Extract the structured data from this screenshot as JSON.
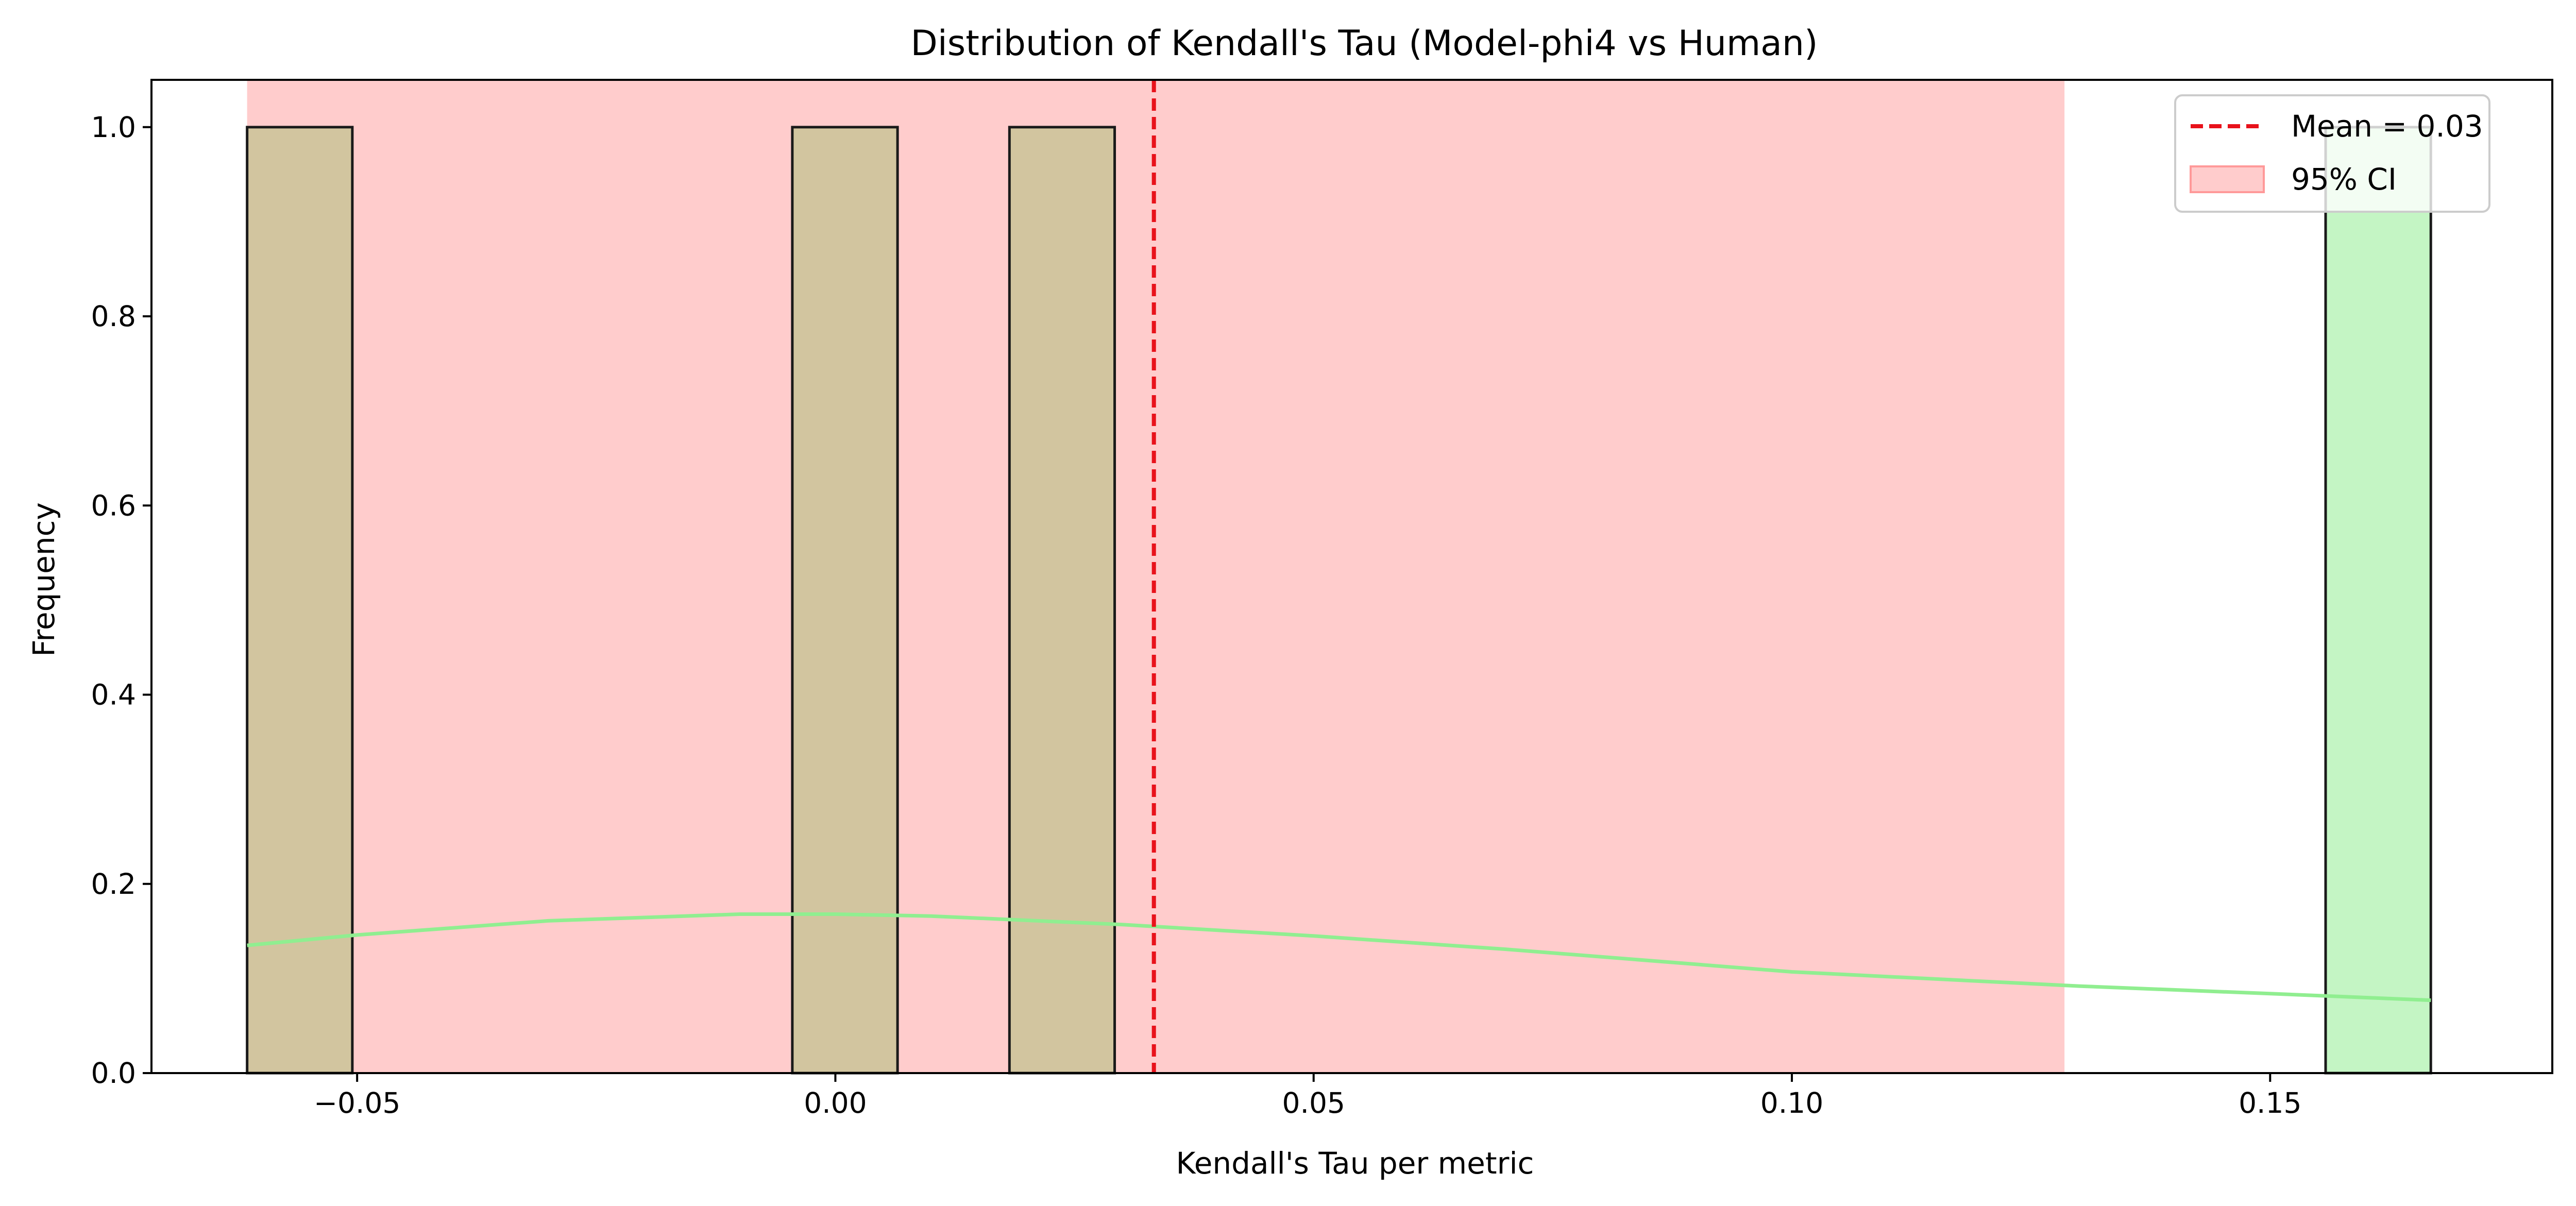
{
  "chart_data": {
    "type": "histogram",
    "title": "Distribution of Kendall's Tau (Model-phi4 vs Human)",
    "xlabel": "Kendall's Tau per metric",
    "ylabel": "Frequency",
    "xlim": [
      -0.0715,
      0.1795
    ],
    "ylim": [
      0,
      1.05
    ],
    "xticks": [
      -0.05,
      0.0,
      0.05,
      0.1,
      0.15
    ],
    "xtick_labels": [
      "−0.05",
      "0.00",
      "0.05",
      "0.10",
      "0.15"
    ],
    "yticks": [
      0.0,
      0.2,
      0.4,
      0.6,
      0.8,
      1.0
    ],
    "ytick_labels": [
      "0.0",
      "0.2",
      "0.4",
      "0.6",
      "0.8",
      "1.0"
    ],
    "grid": false,
    "legend_position": "top-right",
    "bins": [
      {
        "x0": -0.0615,
        "x1": -0.0505,
        "count": 1,
        "in_ci": true
      },
      {
        "x0": -0.0045,
        "x1": 0.0065,
        "count": 1,
        "in_ci": true
      },
      {
        "x0": 0.0182,
        "x1": 0.0292,
        "count": 1,
        "in_ci": true
      },
      {
        "x0": 0.1558,
        "x1": 0.1668,
        "count": 1,
        "in_ci": false
      }
    ],
    "mean": {
      "value": 0.0333,
      "label": "Mean = 0.03",
      "color": "#e8121b"
    },
    "ci": {
      "low": -0.0615,
      "high": 0.1285,
      "label": "95% CI",
      "color": "#ff9999"
    },
    "kde": {
      "color": "#90ee90",
      "x": [
        -0.0615,
        -0.05,
        -0.03,
        -0.01,
        0.0,
        0.01,
        0.03,
        0.05,
        0.07,
        0.1,
        0.13,
        0.15,
        0.1668
      ],
      "y": [
        0.135,
        0.146,
        0.161,
        0.168,
        0.168,
        0.166,
        0.157,
        0.145,
        0.131,
        0.107,
        0.092,
        0.084,
        0.077
      ]
    },
    "colors": {
      "bar_in_ci": "#d2c59f",
      "bar_outside": "#c4f5c4",
      "bar_edge": "#1a1a1a"
    }
  }
}
